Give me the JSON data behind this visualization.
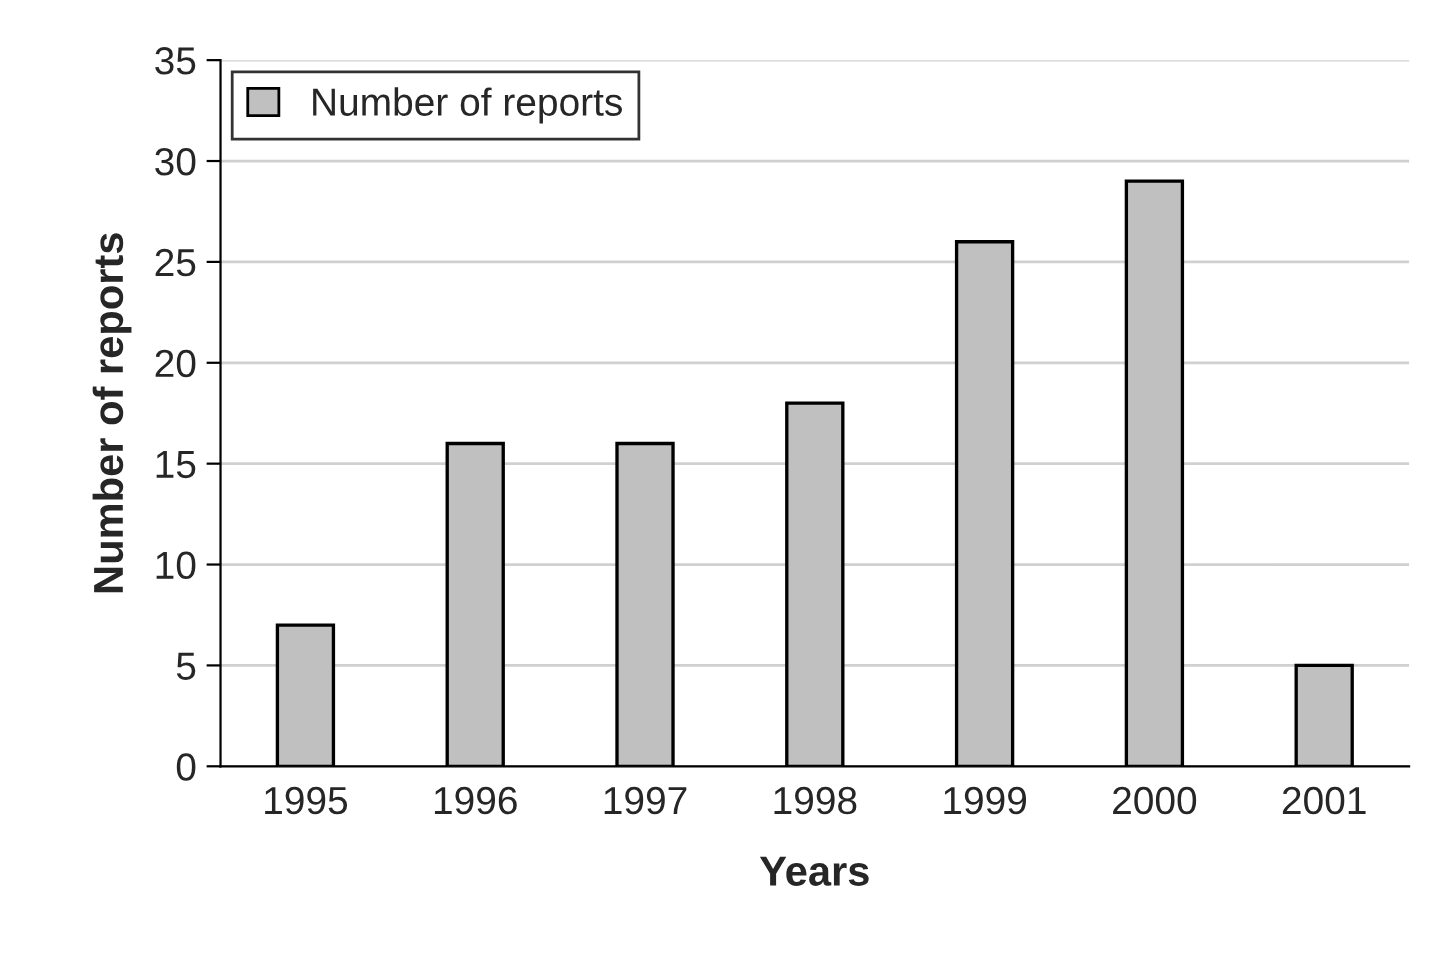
{
  "chart_data": {
    "type": "bar",
    "xlabel": "Years",
    "ylabel": "Number of reports",
    "categories": [
      "1995",
      "1996",
      "1997",
      "1998",
      "1999",
      "2000",
      "2001"
    ],
    "series": [
      {
        "name": "Number of reports",
        "color": "#c0c0c0",
        "values": [
          7,
          16,
          16,
          18,
          26,
          29,
          5
        ]
      }
    ],
    "ylim": [
      0,
      35
    ],
    "yticks": [
      0,
      5,
      10,
      15,
      20,
      25,
      30,
      35
    ],
    "grid": "y",
    "legend": "top left"
  }
}
